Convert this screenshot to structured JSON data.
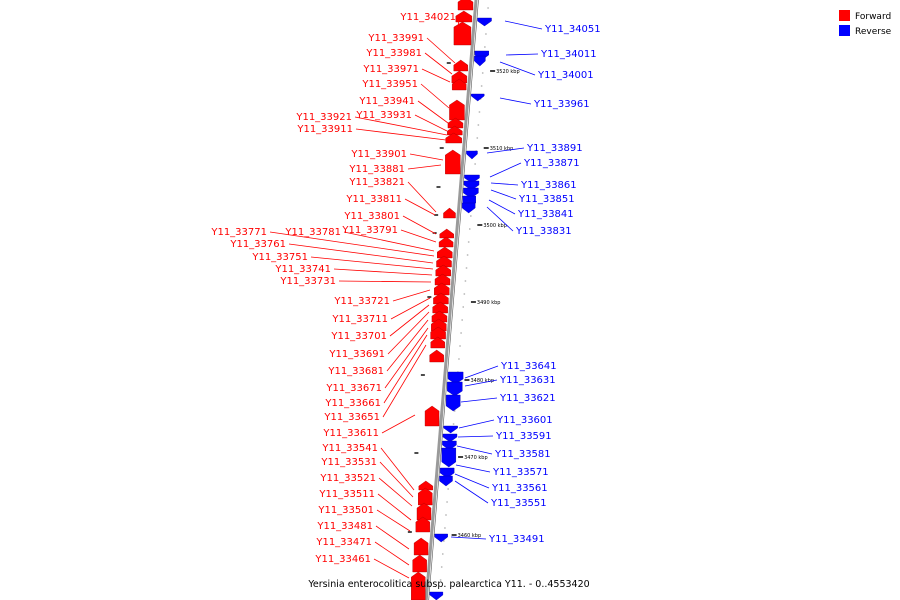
{
  "caption": "Yersinia enterocolitica subsp. palearctica Y11. - 0..4553420",
  "legend": [
    {
      "label": "Forward",
      "color": "#ff0000"
    },
    {
      "label": "Reverse",
      "color": "#0000ff"
    }
  ],
  "colors": {
    "forward": "#ff0000",
    "reverse": "#0000ff",
    "backbone": "#999999",
    "tick": "#000000"
  },
  "ticks": [
    "3520 kbp",
    "3510 kbp",
    "3500 kbp",
    "3490 kbp",
    "3480 kbp",
    "3470 kbp",
    "3460 kbp"
  ],
  "forward_genes": [
    "Y11_34021",
    "Y11_33991",
    "Y11_33981",
    "Y11_33971",
    "Y11_33951",
    "Y11_33941",
    "Y11_33931",
    "Y11_33921",
    "Y11_33911",
    "Y11_33901",
    "Y11_33881",
    "Y11_33821",
    "Y11_33811",
    "Y11_33801",
    "Y11_33791",
    "Y11_33781",
    "Y11_33771",
    "Y11_33761",
    "Y11_33751",
    "Y11_33741",
    "Y11_33731",
    "Y11_33721",
    "Y11_33711",
    "Y11_33701",
    "Y11_33691",
    "Y11_33681",
    "Y11_33671",
    "Y11_33661",
    "Y11_33651",
    "Y11_33611",
    "Y11_33541",
    "Y11_33531",
    "Y11_33521",
    "Y11_33511",
    "Y11_33501",
    "Y11_33481",
    "Y11_33471",
    "Y11_33461"
  ],
  "reverse_genes": [
    "Y11_34051",
    "Y11_34011",
    "Y11_34001",
    "Y11_33961",
    "Y11_33891",
    "Y11_33871",
    "Y11_33861",
    "Y11_33851",
    "Y11_33841",
    "Y11_33831",
    "Y11_33641",
    "Y11_33631",
    "Y11_33621",
    "Y11_33601",
    "Y11_33591",
    "Y11_33581",
    "Y11_33571",
    "Y11_33561",
    "Y11_33551",
    "Y11_33491"
  ]
}
